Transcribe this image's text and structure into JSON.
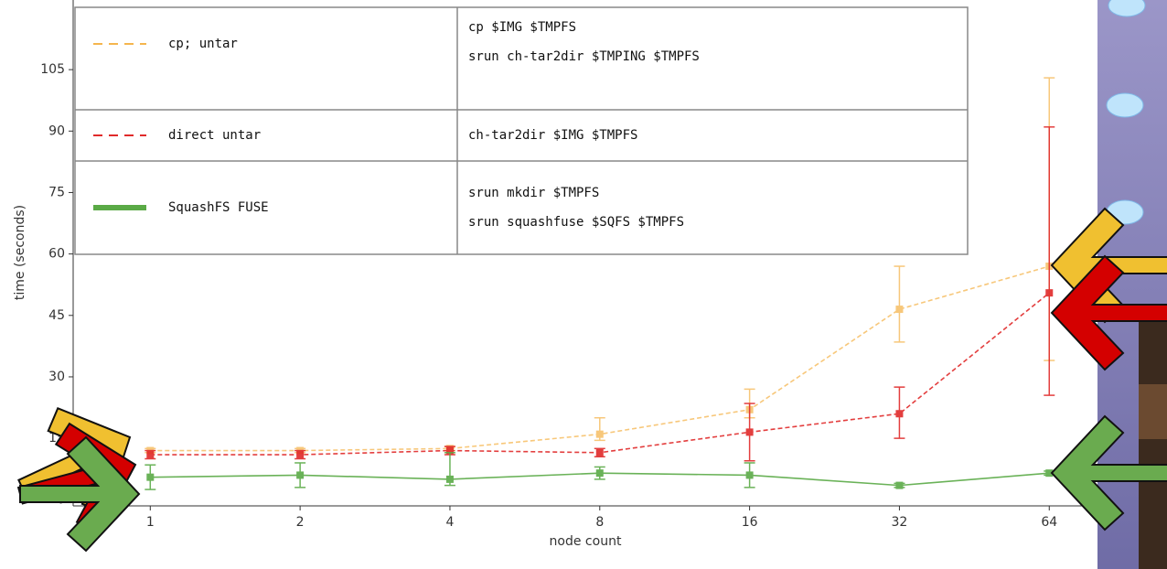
{
  "chart_data": {
    "type": "line",
    "x": [
      1,
      2,
      4,
      8,
      16,
      32,
      64
    ],
    "xscale": "log",
    "xlim": [
      0.7,
      80
    ],
    "xticks": [
      1,
      2,
      4,
      8,
      16,
      32,
      64
    ],
    "ylim": [
      -1.5,
      122
    ],
    "yticks": [
      0,
      15,
      30,
      45,
      60,
      75,
      90,
      105
    ],
    "xlabel": "node count",
    "ylabel": "time (seconds)",
    "series": [
      {
        "name": "cp; untar",
        "color": "#f5b54e",
        "dash": true,
        "values": [
          12,
          12,
          12.5,
          16,
          22,
          46.5,
          57
        ],
        "err_low": [
          0.5,
          0.5,
          0.5,
          1.5,
          2,
          8,
          23
        ],
        "err_high": [
          0.5,
          0.5,
          0.5,
          4,
          5,
          10.5,
          46
        ],
        "commands": [
          "cp $IMG $TMPFS",
          "srun ch-tar2dir $TMPING $TMPFS"
        ]
      },
      {
        "name": "direct untar",
        "color": "#e02a2a",
        "dash": true,
        "values": [
          11,
          11,
          12,
          11.5,
          16.5,
          21,
          50.5
        ],
        "err_low": [
          1,
          1,
          1,
          1,
          7,
          6,
          25
        ],
        "err_high": [
          1,
          1,
          1,
          1,
          7,
          6.5,
          40.5
        ],
        "commands": [
          "ch-tar2dir $IMG $TMPFS"
        ]
      },
      {
        "name": "SquashFS FUSE",
        "color": "#5aaa46",
        "dash": false,
        "values": [
          5.5,
          6,
          5,
          6.5,
          6,
          3.5,
          6.5
        ],
        "err_low": [
          3,
          3,
          1.5,
          1.5,
          3,
          0.5,
          0.5
        ],
        "err_high": [
          3,
          3,
          6.5,
          1.5,
          3,
          0.5,
          0.5
        ],
        "commands": [
          "srun mkdir $TMPFS",
          "srun squashfuse $SQFS $TMPFS"
        ]
      }
    ]
  }
}
